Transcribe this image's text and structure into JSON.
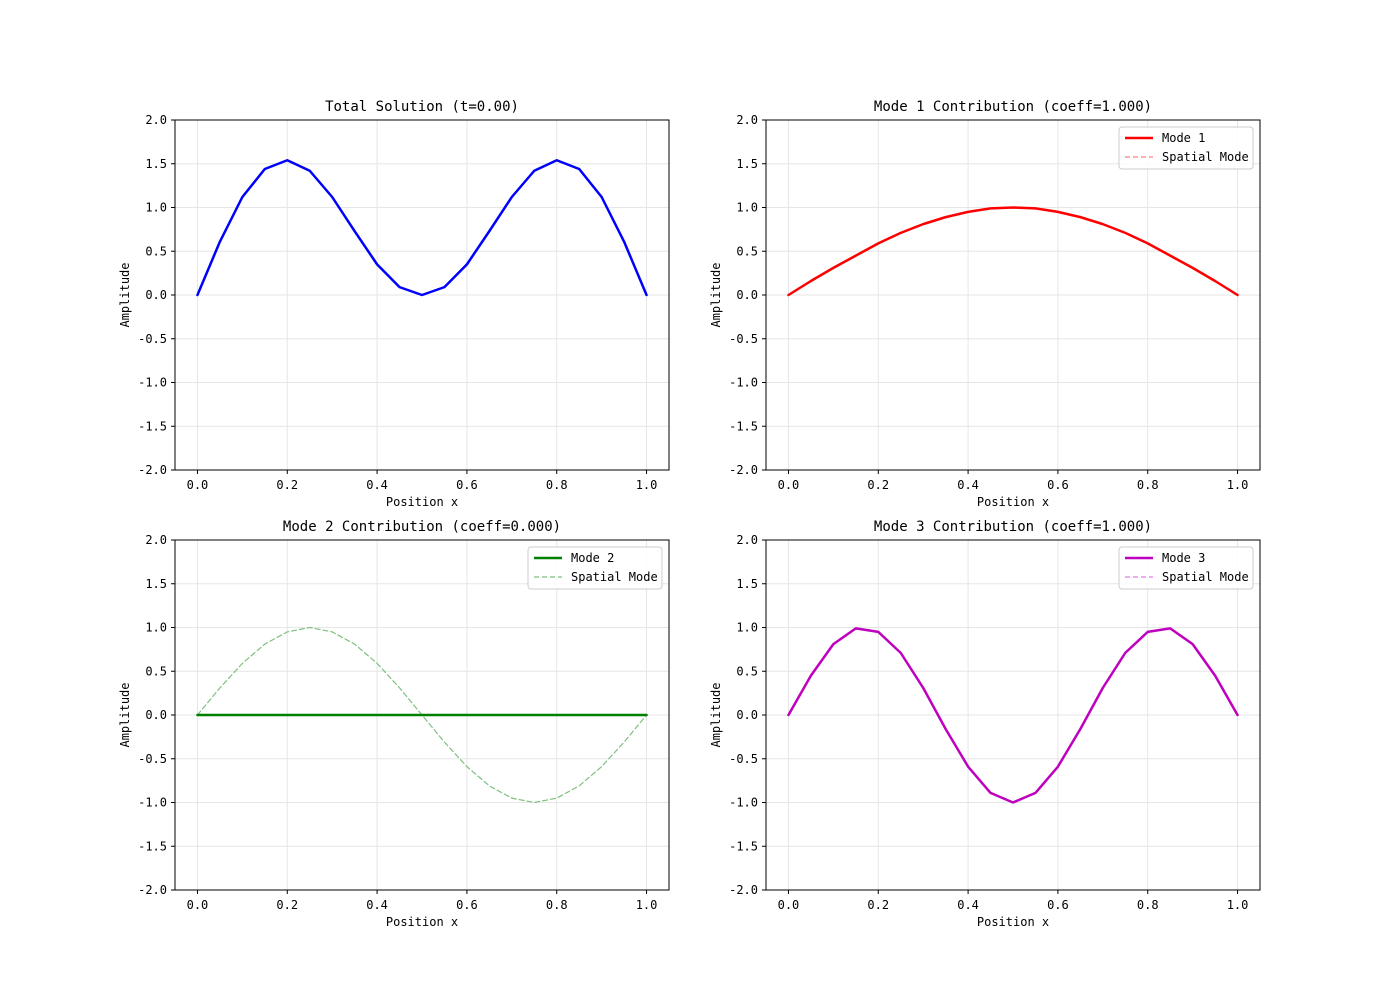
{
  "chart_data": [
    {
      "type": "line",
      "title": "Total Solution (t=0.00)",
      "xlabel": "Position x",
      "ylabel": "Amplitude",
      "xlim": [
        0,
        1
      ],
      "ylim": [
        -2,
        2
      ],
      "xticks": [
        "0.0",
        "0.2",
        "0.4",
        "0.6",
        "0.8",
        "1.0"
      ],
      "yticks": [
        "2.0",
        "1.5",
        "1.0",
        "0.5",
        "0.0",
        "-0.5",
        "-1.0",
        "-1.5",
        "-2.0"
      ],
      "grid": true,
      "legend": null,
      "series": [
        {
          "color": "#0000ff",
          "style": "solid",
          "x": [
            0,
            0.05,
            0.1,
            0.15,
            0.2,
            0.25,
            0.3,
            0.35,
            0.4,
            0.45,
            0.5,
            0.55,
            0.6,
            0.65,
            0.7,
            0.75,
            0.8,
            0.85,
            0.9,
            0.95,
            1.0
          ],
          "y": [
            0,
            0.61,
            1.12,
            1.44,
            1.54,
            1.42,
            1.12,
            0.73,
            0.35,
            0.09,
            0,
            0.09,
            0.35,
            0.73,
            1.12,
            1.42,
            1.54,
            1.44,
            1.12,
            0.61,
            0
          ]
        }
      ]
    },
    {
      "type": "line",
      "title": "Mode 1 Contribution (coeff=1.000)",
      "xlabel": "Position x",
      "ylabel": "Amplitude",
      "xlim": [
        0,
        1
      ],
      "ylim": [
        -2,
        2
      ],
      "xticks": [
        "0.0",
        "0.2",
        "0.4",
        "0.6",
        "0.8",
        "1.0"
      ],
      "yticks": [
        "2.0",
        "1.5",
        "1.0",
        "0.5",
        "0.0",
        "-0.5",
        "-1.0",
        "-1.5",
        "-2.0"
      ],
      "grid": true,
      "legend": "top-right",
      "series": [
        {
          "name": "Mode 1",
          "color": "#ff0000",
          "style": "solid",
          "x": [
            0,
            0.05,
            0.1,
            0.15,
            0.2,
            0.25,
            0.3,
            0.35,
            0.4,
            0.45,
            0.5,
            0.55,
            0.6,
            0.65,
            0.7,
            0.75,
            0.8,
            0.85,
            0.9,
            0.95,
            1.0
          ],
          "y": [
            0,
            0.16,
            0.31,
            0.45,
            0.59,
            0.71,
            0.81,
            0.89,
            0.95,
            0.99,
            1.0,
            0.99,
            0.95,
            0.89,
            0.81,
            0.71,
            0.59,
            0.45,
            0.31,
            0.16,
            0
          ]
        },
        {
          "name": "Spatial Mode",
          "color": "#ff7f7f",
          "style": "dashed",
          "x": [
            0,
            0.05,
            0.1,
            0.15,
            0.2,
            0.25,
            0.3,
            0.35,
            0.4,
            0.45,
            0.5,
            0.55,
            0.6,
            0.65,
            0.7,
            0.75,
            0.8,
            0.85,
            0.9,
            0.95,
            1.0
          ],
          "y": [
            0,
            0.16,
            0.31,
            0.45,
            0.59,
            0.71,
            0.81,
            0.89,
            0.95,
            0.99,
            1.0,
            0.99,
            0.95,
            0.89,
            0.81,
            0.71,
            0.59,
            0.45,
            0.31,
            0.16,
            0
          ]
        }
      ]
    },
    {
      "type": "line",
      "title": "Mode 2 Contribution (coeff=0.000)",
      "xlabel": "Position x",
      "ylabel": "Amplitude",
      "xlim": [
        0,
        1
      ],
      "ylim": [
        -2,
        2
      ],
      "xticks": [
        "0.0",
        "0.2",
        "0.4",
        "0.6",
        "0.8",
        "1.0"
      ],
      "yticks": [
        "2.0",
        "1.5",
        "1.0",
        "0.5",
        "0.0",
        "-0.5",
        "-1.0",
        "-1.5",
        "-2.0"
      ],
      "grid": true,
      "legend": "top-right",
      "series": [
        {
          "name": "Mode 2",
          "color": "#008000",
          "style": "solid",
          "x": [
            0,
            0.05,
            0.1,
            0.15,
            0.2,
            0.25,
            0.3,
            0.35,
            0.4,
            0.45,
            0.5,
            0.55,
            0.6,
            0.65,
            0.7,
            0.75,
            0.8,
            0.85,
            0.9,
            0.95,
            1.0
          ],
          "y": [
            0,
            0,
            0,
            0,
            0,
            0,
            0,
            0,
            0,
            0,
            0,
            0,
            0,
            0,
            0,
            0,
            0,
            0,
            0,
            0,
            0
          ]
        },
        {
          "name": "Spatial Mode",
          "color": "#7fbf7f",
          "style": "dashed",
          "x": [
            0,
            0.05,
            0.1,
            0.15,
            0.2,
            0.25,
            0.3,
            0.35,
            0.4,
            0.45,
            0.5,
            0.55,
            0.6,
            0.65,
            0.7,
            0.75,
            0.8,
            0.85,
            0.9,
            0.95,
            1.0
          ],
          "y": [
            0,
            0.31,
            0.59,
            0.81,
            0.95,
            1.0,
            0.95,
            0.81,
            0.59,
            0.31,
            0,
            -0.31,
            -0.59,
            -0.81,
            -0.95,
            -1.0,
            -0.95,
            -0.81,
            -0.59,
            -0.31,
            0
          ]
        }
      ]
    },
    {
      "type": "line",
      "title": "Mode 3 Contribution (coeff=1.000)",
      "xlabel": "Position x",
      "ylabel": "Amplitude",
      "xlim": [
        0,
        1
      ],
      "ylim": [
        -2,
        2
      ],
      "xticks": [
        "0.0",
        "0.2",
        "0.4",
        "0.6",
        "0.8",
        "1.0"
      ],
      "yticks": [
        "2.0",
        "1.5",
        "1.0",
        "0.5",
        "0.0",
        "-0.5",
        "-1.0",
        "-1.5",
        "-2.0"
      ],
      "grid": true,
      "legend": "top-right",
      "series": [
        {
          "name": "Mode 3",
          "color": "#bf00bf",
          "style": "solid",
          "x": [
            0,
            0.05,
            0.1,
            0.15,
            0.2,
            0.25,
            0.3,
            0.35,
            0.4,
            0.45,
            0.5,
            0.55,
            0.6,
            0.65,
            0.7,
            0.75,
            0.8,
            0.85,
            0.9,
            0.95,
            1.0
          ],
          "y": [
            0,
            0.45,
            0.81,
            0.99,
            0.95,
            0.71,
            0.31,
            -0.16,
            -0.59,
            -0.89,
            -1.0,
            -0.89,
            -0.59,
            -0.16,
            0.31,
            0.71,
            0.95,
            0.99,
            0.81,
            0.45,
            0
          ]
        },
        {
          "name": "Spatial Mode",
          "color": "#df7fdf",
          "style": "dashed",
          "x": [
            0,
            0.05,
            0.1,
            0.15,
            0.2,
            0.25,
            0.3,
            0.35,
            0.4,
            0.45,
            0.5,
            0.55,
            0.6,
            0.65,
            0.7,
            0.75,
            0.8,
            0.85,
            0.9,
            0.95,
            1.0
          ],
          "y": [
            0,
            0.45,
            0.81,
            0.99,
            0.95,
            0.71,
            0.31,
            -0.16,
            -0.59,
            -0.89,
            -1.0,
            -0.89,
            -0.59,
            -0.16,
            0.31,
            0.71,
            0.95,
            0.99,
            0.81,
            0.45,
            0
          ]
        }
      ]
    }
  ]
}
